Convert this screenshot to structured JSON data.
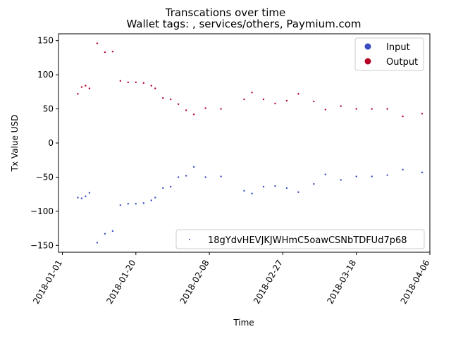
{
  "chart_data": {
    "type": "scatter",
    "title": "Transcations over time",
    "subtitle": "Wallet tags: , services/others, Paymium.com",
    "xlabel": "Time",
    "ylabel": "Tx Value USD",
    "x_ticks": [
      "2018-01-01",
      "2018-01-20",
      "2018-02-08",
      "2018-02-27",
      "2018-03-18",
      "2018-04-06"
    ],
    "x_range": [
      "2017-12-31",
      "2018-04-06"
    ],
    "y_ticks": [
      -150,
      -100,
      -50,
      0,
      50,
      100,
      150
    ],
    "ylim": [
      -160,
      160
    ],
    "grid": false,
    "legend": {
      "placement": "top-right",
      "entries": [
        {
          "label": "Input",
          "color": "#3b4cc0"
        },
        {
          "label": "Output",
          "color": "#b40426"
        }
      ]
    },
    "legend2": {
      "placement": "lower-right",
      "entries": [
        {
          "label": "18gYdvHEVJKJWHmC5oawCSNbTDFUd7p68",
          "color": "#3b4cc0"
        }
      ]
    },
    "series": [
      {
        "name": "Output",
        "color": "#b40426",
        "points": [
          {
            "x": "2018-01-05",
            "y": 72
          },
          {
            "x": "2018-01-06",
            "y": 82
          },
          {
            "x": "2018-01-07",
            "y": 84
          },
          {
            "x": "2018-01-08",
            "y": 80
          },
          {
            "x": "2018-01-10",
            "y": 146
          },
          {
            "x": "2018-01-12",
            "y": 133
          },
          {
            "x": "2018-01-14",
            "y": 134
          },
          {
            "x": "2018-01-16",
            "y": 91
          },
          {
            "x": "2018-01-18",
            "y": 89
          },
          {
            "x": "2018-01-20",
            "y": 89
          },
          {
            "x": "2018-01-22",
            "y": 88
          },
          {
            "x": "2018-01-24",
            "y": 84
          },
          {
            "x": "2018-01-25",
            "y": 80
          },
          {
            "x": "2018-01-27",
            "y": 66
          },
          {
            "x": "2018-01-29",
            "y": 64
          },
          {
            "x": "2018-01-31",
            "y": 57
          },
          {
            "x": "2018-02-02",
            "y": 48
          },
          {
            "x": "2018-02-04",
            "y": 42
          },
          {
            "x": "2018-02-07",
            "y": 51
          },
          {
            "x": "2018-02-11",
            "y": 50
          },
          {
            "x": "2018-02-17",
            "y": 64
          },
          {
            "x": "2018-02-19",
            "y": 74
          },
          {
            "x": "2018-02-22",
            "y": 64
          },
          {
            "x": "2018-02-25",
            "y": 58
          },
          {
            "x": "2018-02-28",
            "y": 62
          },
          {
            "x": "2018-03-03",
            "y": 72
          },
          {
            "x": "2018-03-07",
            "y": 61
          },
          {
            "x": "2018-03-10",
            "y": 49
          },
          {
            "x": "2018-03-14",
            "y": 54
          },
          {
            "x": "2018-03-18",
            "y": 50
          },
          {
            "x": "2018-03-22",
            "y": 50
          },
          {
            "x": "2018-03-26",
            "y": 50
          },
          {
            "x": "2018-03-30",
            "y": 39
          },
          {
            "x": "2018-04-04",
            "y": 43
          }
        ]
      },
      {
        "name": "Input",
        "color": "#3b4cc0",
        "points": [
          {
            "x": "2018-01-05",
            "y": -80
          },
          {
            "x": "2018-01-06",
            "y": -81
          },
          {
            "x": "2018-01-07",
            "y": -78
          },
          {
            "x": "2018-01-08",
            "y": -73
          },
          {
            "x": "2018-01-10",
            "y": -146
          },
          {
            "x": "2018-01-12",
            "y": -133
          },
          {
            "x": "2018-01-14",
            "y": -129
          },
          {
            "x": "2018-01-16",
            "y": -91
          },
          {
            "x": "2018-01-18",
            "y": -89
          },
          {
            "x": "2018-01-20",
            "y": -89
          },
          {
            "x": "2018-01-22",
            "y": -88
          },
          {
            "x": "2018-01-24",
            "y": -84
          },
          {
            "x": "2018-01-25",
            "y": -80
          },
          {
            "x": "2018-01-27",
            "y": -66
          },
          {
            "x": "2018-01-29",
            "y": -64
          },
          {
            "x": "2018-01-31",
            "y": -50
          },
          {
            "x": "2018-02-02",
            "y": -48
          },
          {
            "x": "2018-02-04",
            "y": -35
          },
          {
            "x": "2018-02-07",
            "y": -50
          },
          {
            "x": "2018-02-11",
            "y": -49
          },
          {
            "x": "2018-02-17",
            "y": -70
          },
          {
            "x": "2018-02-19",
            "y": -74
          },
          {
            "x": "2018-02-22",
            "y": -64
          },
          {
            "x": "2018-02-25",
            "y": -63
          },
          {
            "x": "2018-02-28",
            "y": -66
          },
          {
            "x": "2018-03-03",
            "y": -72
          },
          {
            "x": "2018-03-07",
            "y": -60
          },
          {
            "x": "2018-03-10",
            "y": -46
          },
          {
            "x": "2018-03-14",
            "y": -54
          },
          {
            "x": "2018-03-18",
            "y": -49
          },
          {
            "x": "2018-03-22",
            "y": -49
          },
          {
            "x": "2018-03-26",
            "y": -47
          },
          {
            "x": "2018-03-30",
            "y": -39
          },
          {
            "x": "2018-04-04",
            "y": -43
          }
        ]
      }
    ]
  }
}
